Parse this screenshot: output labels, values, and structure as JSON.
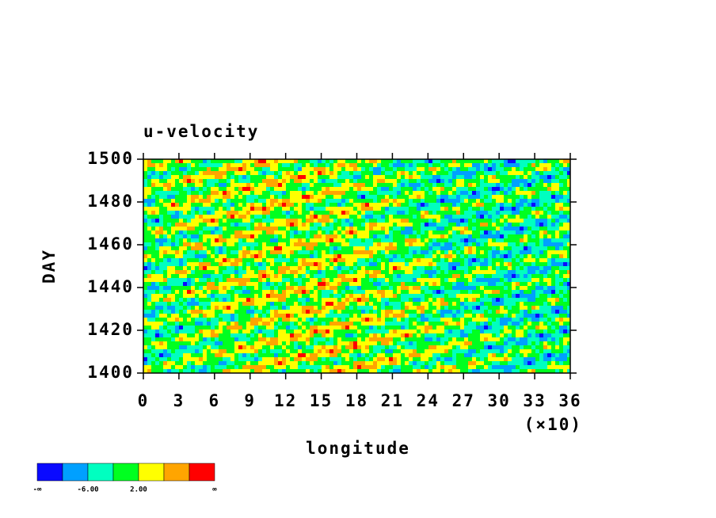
{
  "chart_data": {
    "type": "contour",
    "title": "u-velocity",
    "x_label": "longitude",
    "y_label": "DAY",
    "x_multiplier": "(×10)",
    "xlim": [
      0,
      36
    ],
    "xticks": [
      0,
      3,
      6,
      9,
      12,
      15,
      18,
      21,
      24,
      27,
      30,
      33,
      36
    ],
    "ylim": [
      1400,
      1500
    ],
    "yticks": [
      1400,
      1420,
      1440,
      1460,
      1480,
      1500
    ],
    "colorbar": {
      "colors": [
        "#0a0aff",
        "#00a0ff",
        "#00ffc0",
        "#00ff20",
        "#ffff00",
        "#ffa500",
        "#ff0000"
      ],
      "boundaries": [
        "-∞",
        null,
        "-6.00",
        null,
        "2.00",
        null,
        null,
        "∞"
      ]
    }
  }
}
